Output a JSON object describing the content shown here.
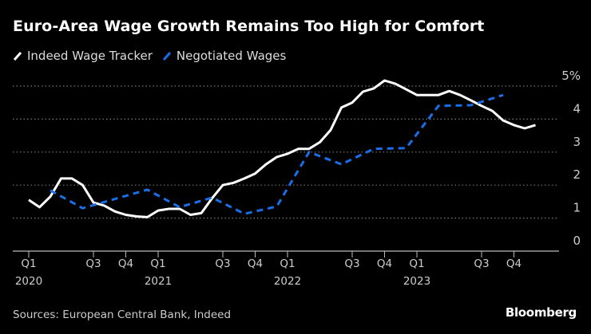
{
  "chart_data": {
    "type": "line",
    "title": "Euro-Area Wage Growth Remains Too High for Comfort",
    "y_unit": "%",
    "ylim": [
      0,
      5
    ],
    "yticks": [
      0,
      1,
      2,
      3,
      4,
      5
    ],
    "ytick_labels": [
      "0",
      "1",
      "2",
      "3",
      "4",
      "5%"
    ],
    "grid": true,
    "legend_placement": "top-left",
    "xticks": [
      {
        "date": "2020-01",
        "label": "Q1",
        "year": "2020"
      },
      {
        "date": "2020-07",
        "label": "Q3",
        "year": ""
      },
      {
        "date": "2020-10",
        "label": "Q4",
        "year": ""
      },
      {
        "date": "2021-01",
        "label": "Q1",
        "year": "2021"
      },
      {
        "date": "2021-07",
        "label": "Q3",
        "year": ""
      },
      {
        "date": "2021-10",
        "label": "Q4",
        "year": ""
      },
      {
        "date": "2022-01",
        "label": "Q1",
        "year": "2022"
      },
      {
        "date": "2022-07",
        "label": "Q3",
        "year": ""
      },
      {
        "date": "2022-10",
        "label": "Q4",
        "year": ""
      },
      {
        "date": "2023-01",
        "label": "Q1",
        "year": "2023"
      },
      {
        "date": "2023-07",
        "label": "Q3",
        "year": ""
      },
      {
        "date": "2023-10",
        "label": "Q4",
        "year": ""
      }
    ],
    "series": [
      {
        "name": "Indeed Wage Tracker",
        "color": "#ffffff",
        "style": "solid",
        "x": [
          "2020-01",
          "2020-02",
          "2020-03",
          "2020-04",
          "2020-05",
          "2020-06",
          "2020-07",
          "2020-08",
          "2020-09",
          "2020-10",
          "2020-11",
          "2020-12",
          "2021-01",
          "2021-02",
          "2021-03",
          "2021-04",
          "2021-05",
          "2021-06",
          "2021-07",
          "2021-08",
          "2021-09",
          "2021-10",
          "2021-11",
          "2021-12",
          "2022-01",
          "2022-02",
          "2022-03",
          "2022-04",
          "2022-05",
          "2022-06",
          "2022-07",
          "2022-08",
          "2022-09",
          "2022-10",
          "2022-11",
          "2022-12",
          "2023-01",
          "2023-02",
          "2023-03",
          "2023-04",
          "2023-05",
          "2023-06",
          "2023-07",
          "2023-08",
          "2023-09",
          "2023-10",
          "2023-11",
          "2023-12"
        ],
        "values": [
          1.55,
          1.33,
          1.65,
          2.2,
          2.2,
          2.0,
          1.47,
          1.38,
          1.2,
          1.1,
          1.05,
          1.03,
          1.23,
          1.28,
          1.28,
          1.1,
          1.15,
          1.6,
          2.0,
          2.07,
          2.2,
          2.35,
          2.63,
          2.85,
          2.95,
          3.1,
          3.1,
          3.3,
          3.67,
          4.35,
          4.5,
          4.83,
          4.93,
          5.17,
          5.07,
          4.9,
          4.73,
          4.73,
          4.73,
          4.85,
          4.73,
          4.57,
          4.4,
          4.25,
          3.96,
          3.82,
          3.72,
          3.82
        ]
      },
      {
        "name": "Negotiated Wages",
        "color": "#1a6fe8",
        "style": "dashed",
        "x": [
          "2020-03",
          "2020-06",
          "2020-09",
          "2020-12",
          "2021-03",
          "2021-06",
          "2021-09",
          "2021-12",
          "2022-03",
          "2022-06",
          "2022-09",
          "2022-12",
          "2023-03",
          "2023-06",
          "2023-09"
        ],
        "values": [
          1.84,
          1.3,
          1.58,
          1.86,
          1.33,
          1.62,
          1.13,
          1.35,
          3.0,
          2.63,
          3.1,
          3.12,
          4.4,
          4.42,
          4.73
        ]
      }
    ]
  },
  "footer": {
    "source": "Sources: European Central Bank, Indeed",
    "brand": "Bloomberg"
  }
}
